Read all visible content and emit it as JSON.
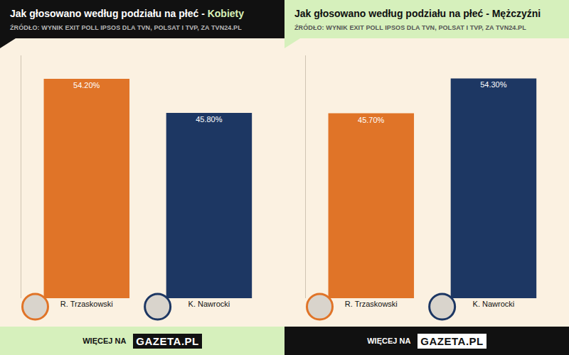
{
  "chart_data": [
    {
      "type": "bar",
      "title": "Jak głosowano według podziału na płeć - Kobiety",
      "subtitle": "ŹRÓDŁO: WYNIK EXIT POLL IPSOS DLA TVN, POLSAT I TVP, ZA TVN24.PL",
      "categories": [
        "R. Trzaskowski",
        "K. Nawrocki"
      ],
      "values": [
        54.2,
        45.8
      ],
      "value_labels": [
        "54.20%",
        "45.80%"
      ],
      "colors": [
        "#e07428",
        "#1d3763"
      ],
      "ylim": [
        0,
        60
      ],
      "data_labels": true,
      "tick_labels": "x",
      "footer": "WIĘCEJ NA",
      "footer_logo": "GAZETA.PL"
    },
    {
      "type": "bar",
      "title": "Jak głosowano według podziału na płeć - Mężczyźni",
      "subtitle": "ŹRÓDŁO: WYNIK EXIT POLL IPSOS DLA TVN, POLSAT I TVP, ZA TVN24.PL",
      "categories": [
        "R. Trzaskowski",
        "K. Nawrocki"
      ],
      "values": [
        45.7,
        54.3
      ],
      "value_labels": [
        "45.70%",
        "54.30%"
      ],
      "colors": [
        "#e07428",
        "#1d3763"
      ],
      "ylim": [
        0,
        60
      ],
      "data_labels": true,
      "tick_labels": "x",
      "footer": "WIĘCEJ NA",
      "footer_logo": "GAZETA.PL"
    }
  ]
}
